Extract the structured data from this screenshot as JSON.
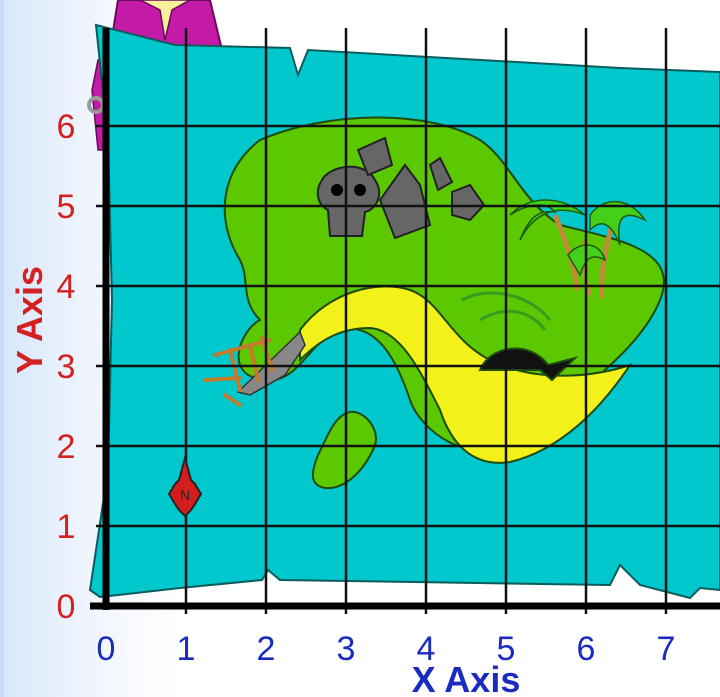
{
  "axes": {
    "x_title": "X Axis",
    "y_title": "Y Axis",
    "x_ticks": [
      "0",
      "1",
      "2",
      "3",
      "4",
      "5",
      "6",
      "7"
    ],
    "y_ticks": [
      "0",
      "1",
      "2",
      "3",
      "4",
      "5",
      "6"
    ]
  },
  "compass": {
    "label": "N",
    "position": [
      1,
      1.4
    ]
  },
  "colors": {
    "sea": "#00c8cc",
    "island": "#5cc800",
    "beach": "#f2f21a",
    "y_axis_text": "#d42020",
    "x_axis_text": "#1a2cc0",
    "compass": "#d41e1e"
  },
  "icons": [
    "skull-rock",
    "palm-trees",
    "cave",
    "shipwreck",
    "compass-rose",
    "pirate"
  ]
}
